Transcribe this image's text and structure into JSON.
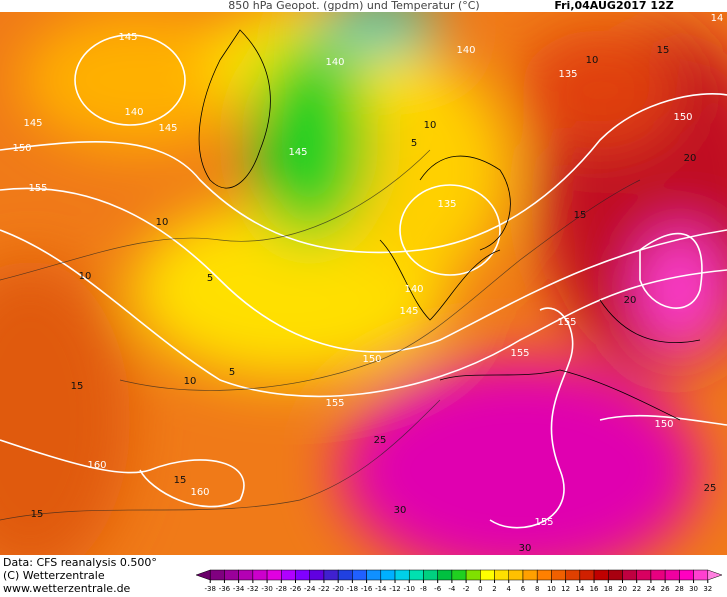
{
  "header": {
    "title": "850 hPa Geopot. (gpdm) und Temperatur (°C)",
    "date": "Fri,04AUG2017  12Z"
  },
  "footer": {
    "source": "Data: CFS reanalysis 0.500°",
    "copyright": "(C) Wetterzentrale",
    "url": "www.wetterzentrale.de"
  },
  "geopotential_labels": [
    145,
    140,
    145,
    145,
    150,
    155,
    140,
    140,
    135,
    150,
    145,
    135,
    140,
    145,
    150,
    155,
    155,
    155,
    160,
    160,
    150,
    155,
    14
  ],
  "temperature_labels": [
    10,
    5,
    10,
    10,
    5,
    5,
    10,
    15,
    15,
    15,
    20,
    15,
    20,
    25,
    30,
    30,
    25,
    15,
    10
  ],
  "colorbar": {
    "ticks": [
      -38,
      -36,
      -34,
      -32,
      -30,
      -28,
      -26,
      -24,
      -22,
      -20,
      -18,
      -16,
      -14,
      -12,
      -10,
      -8,
      -6,
      -4,
      -2,
      0,
      2,
      4,
      6,
      8,
      10,
      12,
      14,
      16,
      18,
      20,
      22,
      24,
      26,
      28,
      30,
      32
    ],
    "colors": [
      "#6a006a",
      "#800080",
      "#9a009a",
      "#b400b4",
      "#cc00cc",
      "#e000e0",
      "#b000ff",
      "#8000ff",
      "#6000e0",
      "#4020d0",
      "#2040e0",
      "#2060ff",
      "#1090ff",
      "#00b0ff",
      "#00d0e8",
      "#00e0b0",
      "#00d080",
      "#00c040",
      "#20d020",
      "#80e000",
      "#ffff00",
      "#ffe000",
      "#ffc000",
      "#ffa000",
      "#ff8000",
      "#f06000",
      "#e04000",
      "#d02000",
      "#c00000",
      "#a80010",
      "#c00040",
      "#d80060",
      "#e80080",
      "#f000a0",
      "#ff00c0",
      "#ff40d0",
      "#ff80e0"
    ]
  }
}
